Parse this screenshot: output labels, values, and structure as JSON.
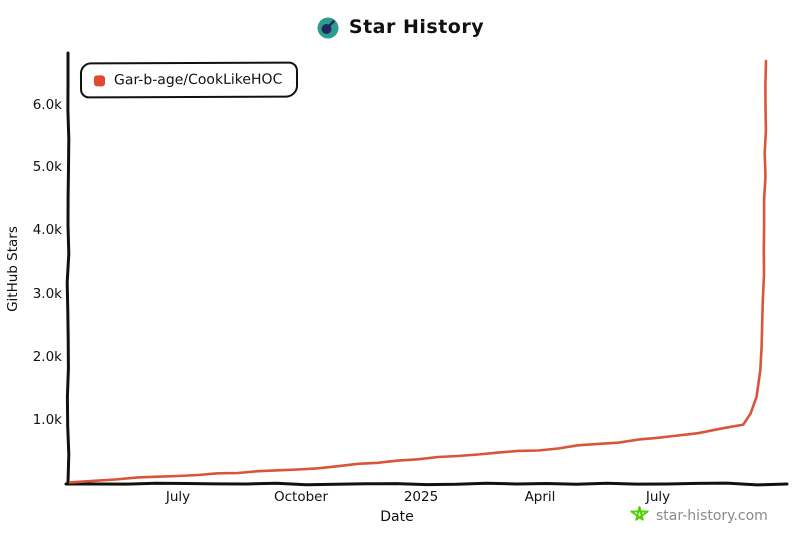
{
  "title": {
    "text": "Star History"
  },
  "legend": {
    "label": "Gar-b-age/CookLikeHOC"
  },
  "watermark": {
    "text": "star-history.com"
  },
  "colors": {
    "line": "#d8553a",
    "legend_marker": "#dd4a2c",
    "axis": "#111111",
    "logo_teal": "#2a9d8f",
    "logo_navy": "#25265e",
    "watermark_star": "#4fd104",
    "watermark_text": "#8a8a8a"
  },
  "chart_data": {
    "type": "line",
    "title": "Star History",
    "xlabel": "Date",
    "ylabel": "GitHub Stars",
    "ylim": [
      0,
      6800
    ],
    "grid": false,
    "legend_position": "top-left",
    "series": [
      {
        "name": "Gar-b-age/CookLikeHOC",
        "color": "#d8553a",
        "x": [
          "2024-04-10",
          "2024-06-01",
          "2024-07-01",
          "2024-08-01",
          "2024-09-01",
          "2024-10-01",
          "2024-11-01",
          "2024-12-01",
          "2025-01-01",
          "2025-02-01",
          "2025-03-01",
          "2025-04-01",
          "2025-05-01",
          "2025-06-01",
          "2025-07-01",
          "2025-08-01",
          "2025-09-05",
          "2025-09-10",
          "2025-09-15",
          "2025-09-18",
          "2025-09-20",
          "2025-09-21",
          "2025-09-22"
        ],
        "values": [
          10,
          80,
          110,
          145,
          190,
          210,
          270,
          320,
          380,
          430,
          475,
          525,
          590,
          650,
          715,
          795,
          920,
          1110,
          1370,
          1790,
          2900,
          4500,
          6700
        ]
      }
    ],
    "x_ticks": [
      {
        "label": "July",
        "date": "2024-07-01"
      },
      {
        "label": "October",
        "date": "2024-10-01"
      },
      {
        "label": "2025",
        "date": "2025-01-01"
      },
      {
        "label": "April",
        "date": "2025-04-01"
      },
      {
        "label": "July",
        "date": "2025-07-01"
      }
    ],
    "y_ticks": [
      {
        "label": "1.0k",
        "value": 1000
      },
      {
        "label": "2.0k",
        "value": 2000
      },
      {
        "label": "3.0k",
        "value": 3000
      },
      {
        "label": "4.0k",
        "value": 4000
      },
      {
        "label": "5.0k",
        "value": 5000
      },
      {
        "label": "6.0k",
        "value": 6000
      }
    ]
  }
}
